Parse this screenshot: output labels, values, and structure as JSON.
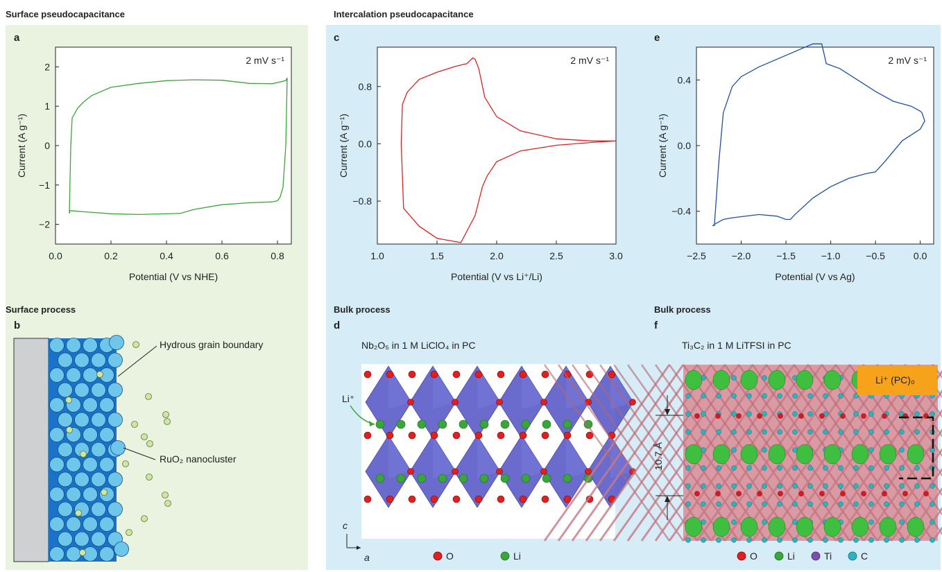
{
  "sections": {
    "surface_title": "Surface pseudocapacitance",
    "intercalation_title": "Intercalation pseudocapacitance",
    "surface_process": "Surface process",
    "bulk_process_d": "Bulk process",
    "bulk_process_f": "Bulk process"
  },
  "panels": {
    "a": "a",
    "b": "b",
    "c": "c",
    "d": "d",
    "e": "e",
    "f": "f"
  },
  "colors": {
    "green_bg": "#e9f3e0",
    "blue_bg": "#d6ecf6",
    "curve_a": "#3aa53a",
    "curve_c": "#e02020",
    "curve_e": "#1f4fa0",
    "electrode": "#1a73c8",
    "cluster": "#6ec6ea",
    "water": "#cfe4a8",
    "orange_label": "#f7a21b"
  },
  "chart_data": [
    {
      "type": "line",
      "panel": "a",
      "annotation": "2 mV s⁻¹",
      "xlabel": "Potential (V vs NHE)",
      "ylabel": "Current (A g⁻¹)",
      "xlim": [
        0.0,
        0.85
      ],
      "ylim": [
        -2.5,
        2.5
      ],
      "xticks": [
        "0.0",
        "0.2",
        "0.4",
        "0.6",
        "0.8"
      ],
      "yticks": [
        "2",
        "1",
        "0",
        "−1",
        "−2"
      ],
      "series": [
        {
          "x": [
            0.05,
            0.055,
            0.06,
            0.08,
            0.1,
            0.13,
            0.2,
            0.3,
            0.4,
            0.5,
            0.6,
            0.7,
            0.78,
            0.83,
            0.835,
            0.83,
            0.82,
            0.81,
            0.8,
            0.78,
            0.7,
            0.6,
            0.5,
            0.45,
            0.3,
            0.2,
            0.1,
            0.07,
            0.05,
            0.052,
            0.05
          ],
          "y": [
            -1.72,
            0.0,
            0.7,
            0.95,
            1.1,
            1.27,
            1.48,
            1.58,
            1.65,
            1.67,
            1.66,
            1.58,
            1.57,
            1.65,
            1.72,
            0.0,
            -1.05,
            -1.3,
            -1.4,
            -1.43,
            -1.45,
            -1.5,
            -1.62,
            -1.72,
            -1.75,
            -1.73,
            -1.68,
            -1.66,
            -1.65,
            -1.7,
            -1.72
          ]
        }
      ]
    },
    {
      "type": "line",
      "panel": "c",
      "annotation": "2 mV s⁻¹",
      "xlabel": "Potential (V vs Li⁺/Li)",
      "ylabel": "Current (A g⁻¹)",
      "xlim": [
        1.0,
        3.0
      ],
      "ylim": [
        -1.4,
        1.35
      ],
      "xticks": [
        "1.0",
        "1.5",
        "2.0",
        "2.5",
        "3.0"
      ],
      "yticks": [
        "0.8",
        "0.0",
        "−0.8"
      ],
      "series": [
        {
          "x": [
            1.2,
            1.21,
            1.25,
            1.35,
            1.5,
            1.65,
            1.75,
            1.8,
            1.82,
            1.85,
            1.9,
            2.0,
            2.2,
            2.5,
            2.8,
            3.0,
            2.8,
            2.5,
            2.2,
            2.0,
            1.92,
            1.88,
            1.85,
            1.82,
            1.7,
            1.5,
            1.35,
            1.22,
            1.2
          ],
          "y": [
            0.0,
            0.55,
            0.72,
            0.9,
            1.0,
            1.08,
            1.12,
            1.2,
            1.18,
            1.05,
            0.65,
            0.38,
            0.18,
            0.07,
            0.04,
            0.04,
            0.02,
            -0.02,
            -0.1,
            -0.25,
            -0.45,
            -0.6,
            -0.8,
            -1.0,
            -1.38,
            -1.32,
            -1.15,
            -0.9,
            0.0
          ]
        }
      ]
    },
    {
      "type": "line",
      "panel": "e",
      "annotation": "2 mV s⁻¹",
      "xlabel": "Potential (V vs Ag)",
      "ylabel": "Current (A g⁻¹)",
      "xlim": [
        -2.5,
        0.15
      ],
      "ylim": [
        -0.6,
        0.6
      ],
      "xticks": [
        "−2.5",
        "−2.0",
        "−1.5",
        "−1.0",
        "−0.5",
        "0.0"
      ],
      "yticks": [
        "0.4",
        "0.0",
        "−0.4"
      ],
      "series": [
        {
          "x": [
            -2.3,
            -2.25,
            -2.2,
            -2.1,
            -2.0,
            -1.8,
            -1.5,
            -1.2,
            -1.1,
            -1.05,
            -0.9,
            -0.7,
            -0.5,
            -0.3,
            -0.1,
            0.0,
            0.02,
            0.05,
            0.0,
            -0.2,
            -0.4,
            -0.5,
            -0.6,
            -0.8,
            -1.0,
            -1.2,
            -1.4,
            -1.45,
            -1.5,
            -1.6,
            -1.8,
            -2.1,
            -2.2,
            -2.3,
            -2.32
          ],
          "y": [
            -0.49,
            -0.1,
            0.2,
            0.36,
            0.42,
            0.48,
            0.55,
            0.62,
            0.62,
            0.5,
            0.47,
            0.4,
            0.33,
            0.27,
            0.24,
            0.21,
            0.2,
            0.15,
            0.1,
            0.03,
            -0.1,
            -0.16,
            -0.17,
            -0.2,
            -0.25,
            -0.32,
            -0.42,
            -0.45,
            -0.45,
            -0.43,
            -0.42,
            -0.44,
            -0.45,
            -0.48,
            -0.49
          ]
        }
      ]
    }
  ],
  "panel_b": {
    "label_grain": "Hydrous grain boundary",
    "label_cluster": "RuO₂ nanocluster"
  },
  "panel_d": {
    "caption": "Nb₂O₅ in 1 M LiClO₄ in PC",
    "li_label": "Li⁺",
    "axis_c": "c",
    "axis_a": "a",
    "legend": [
      {
        "label": "O",
        "color": "#e02020"
      },
      {
        "label": "Li",
        "color": "#3aa53a"
      }
    ]
  },
  "panel_f": {
    "caption": "Ti₃C₂ in 1 M LiTFSI in PC",
    "badge": "Li⁺ (PC)₀",
    "spacing": "10.7 Å",
    "legend": [
      {
        "label": "O",
        "color": "#e02020"
      },
      {
        "label": "Li",
        "color": "#3aa53a"
      },
      {
        "label": "Ti",
        "color": "#7a4fb0"
      },
      {
        "label": "C",
        "color": "#2bb3c0"
      }
    ]
  }
}
